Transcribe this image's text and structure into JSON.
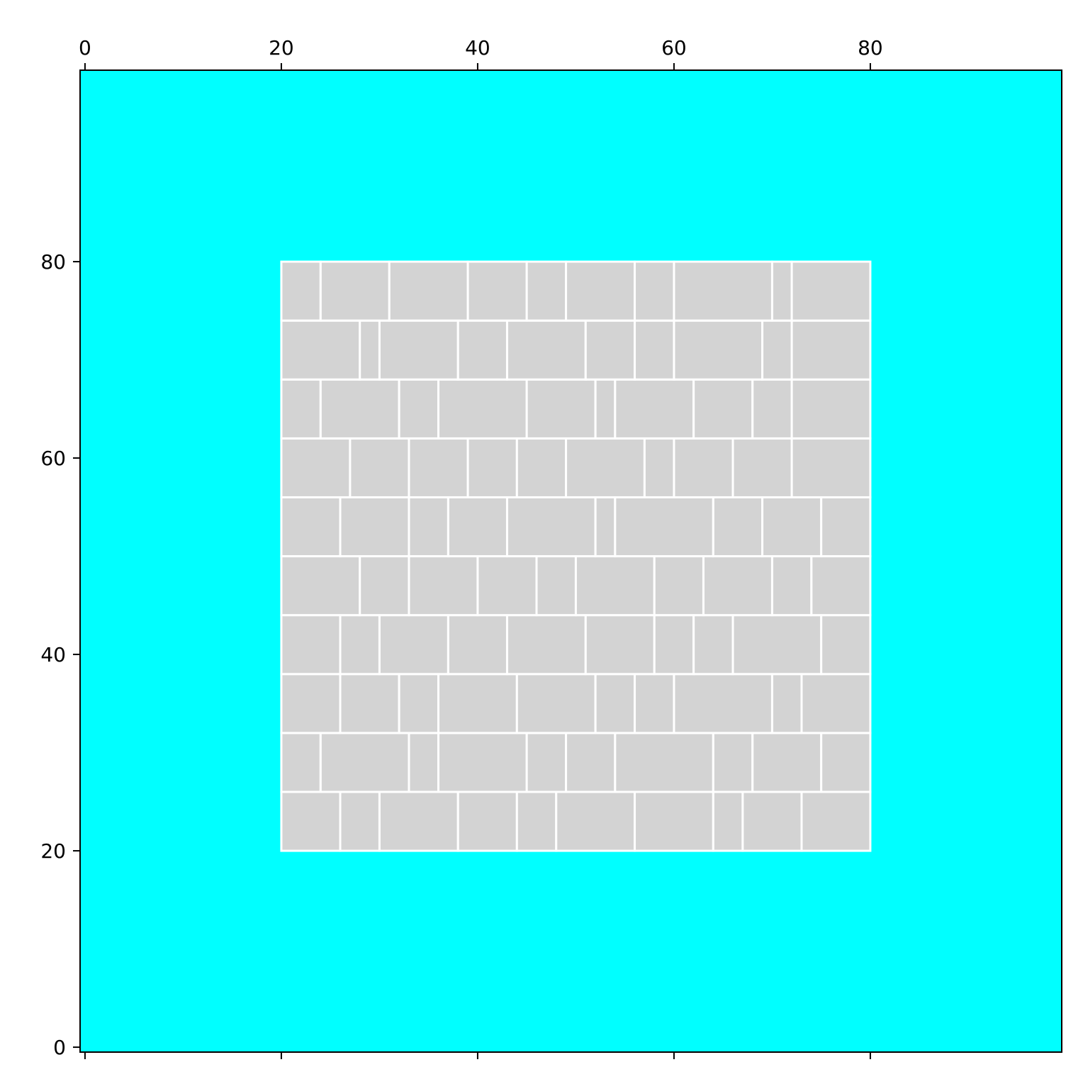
{
  "chart_data": {
    "type": "heatmap",
    "title": "",
    "xlabel": "",
    "ylabel": "",
    "xlim": [
      -0.5,
      99.5
    ],
    "ylim": [
      99.5,
      -0.5
    ],
    "y_inverted": true,
    "x_axis_position": "top",
    "x_ticks": [
      0,
      20,
      40,
      60,
      80
    ],
    "x_tick_labels": [
      "0",
      "20",
      "40",
      "60",
      "80"
    ],
    "y_ticks": [
      0,
      20,
      40,
      60,
      80
    ],
    "y_tick_labels": [
      "0",
      "20",
      "40",
      "60",
      "80"
    ],
    "grid": false,
    "background_color": "#00ffff",
    "brick_color": "#d3d3d3",
    "mortar_color": "#ffffff",
    "wall": {
      "x0": 20,
      "x1": 80,
      "y0": 20,
      "y1": 80
    },
    "rows": [
      {
        "y0": 20,
        "y1": 26,
        "edges": [
          20,
          26,
          30,
          38,
          44,
          48,
          56,
          64,
          67,
          73,
          80
        ]
      },
      {
        "y0": 26,
        "y1": 32,
        "edges": [
          20,
          24,
          33,
          36,
          45,
          49,
          54,
          64,
          68,
          75,
          80
        ]
      },
      {
        "y0": 32,
        "y1": 38,
        "edges": [
          20,
          26,
          32,
          36,
          44,
          52,
          56,
          60,
          70,
          73,
          80
        ]
      },
      {
        "y0": 38,
        "y1": 44,
        "edges": [
          20,
          26,
          30,
          37,
          43,
          51,
          58,
          62,
          66,
          75,
          80
        ]
      },
      {
        "y0": 44,
        "y1": 50,
        "edges": [
          20,
          28,
          33,
          40,
          46,
          50,
          58,
          63,
          70,
          74,
          80
        ]
      },
      {
        "y0": 50,
        "y1": 56,
        "edges": [
          20,
          26,
          33,
          37,
          43,
          52,
          54,
          64,
          69,
          75,
          80
        ]
      },
      {
        "y0": 56,
        "y1": 62,
        "edges": [
          20,
          27,
          33,
          39,
          44,
          49,
          57,
          60,
          66,
          72,
          80
        ]
      },
      {
        "y0": 62,
        "y1": 68,
        "edges": [
          20,
          24,
          32,
          36,
          45,
          52,
          54,
          62,
          68,
          72,
          80
        ]
      },
      {
        "y0": 68,
        "y1": 74,
        "edges": [
          20,
          28,
          30,
          38,
          43,
          51,
          56,
          60,
          69,
          72,
          80
        ]
      },
      {
        "y0": 74,
        "y1": 80,
        "edges": [
          20,
          24,
          31,
          39,
          45,
          49,
          56,
          60,
          70,
          72,
          80
        ]
      }
    ]
  }
}
